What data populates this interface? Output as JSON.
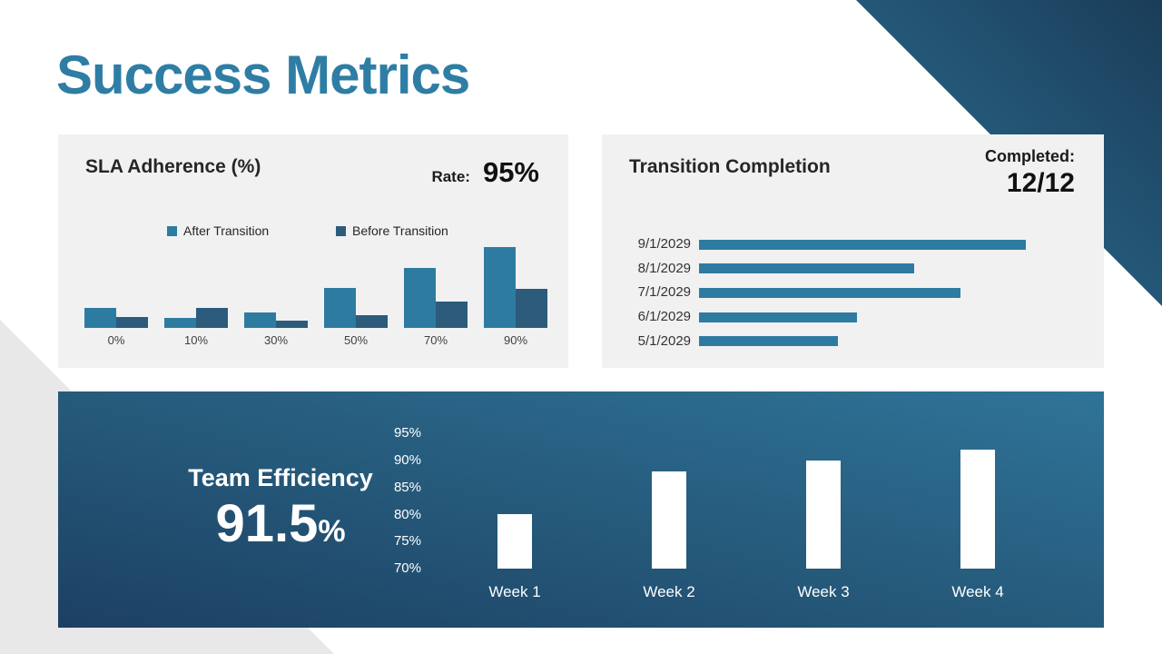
{
  "slide_title": "Success Metrics",
  "colors": {
    "accent": "#2E7DA4",
    "bar_light": "#2E7BA1",
    "bar_dark": "#2C5B7C",
    "bar_white": "#FFFFFF",
    "panel_bg": "#F1F1F2",
    "corner_triangle_light": "#2E7296",
    "corner_triangle_dark": "#1A3D59",
    "gray_triangle": "#E8E8E8"
  },
  "sla_panel": {
    "title": "SLA Adherence (%)",
    "rate_label": "Rate:",
    "rate_value": "95%"
  },
  "transition_panel": {
    "title": "Transition Completion",
    "completed_label": "Completed:",
    "completed_value": "12/12"
  },
  "efficiency_panel": {
    "title": "Team Efficiency",
    "value": "91.5",
    "unit": "%"
  },
  "chart_data": [
    {
      "name": "sla_adherence",
      "type": "bar",
      "categories": [
        "0%",
        "10%",
        "30%",
        "50%",
        "70%",
        "90%"
      ],
      "series": [
        {
          "name": "After Transition",
          "color": "#2E7BA1",
          "values": [
            23,
            12,
            18,
            47,
            70,
            95
          ]
        },
        {
          "name": "Before Transition",
          "color": "#2C5B7C",
          "values": [
            13,
            23,
            9,
            15,
            31,
            46
          ]
        }
      ],
      "ylim": [
        0,
        100
      ],
      "grid": false,
      "legend_position": "top"
    },
    {
      "name": "transition_completion",
      "type": "bar",
      "orientation": "horizontal",
      "categories": [
        "9/1/2029",
        "8/1/2029",
        "7/1/2029",
        "6/1/2029",
        "5/1/2029"
      ],
      "values": [
        12,
        7.9,
        9.6,
        5.8,
        5.1
      ],
      "xlim": [
        0,
        12
      ],
      "bar_color": "#2E7BA1",
      "grid": false
    },
    {
      "name": "team_efficiency",
      "type": "bar",
      "categories": [
        "Week 1",
        "Week 2",
        "Week 3",
        "Week 4"
      ],
      "values": [
        80,
        88,
        90,
        92
      ],
      "y_ticks": [
        "95%",
        "90%",
        "85%",
        "80%",
        "75%",
        "70%"
      ],
      "ylim": [
        70,
        95
      ],
      "bar_color": "#FFFFFF",
      "grid": false
    }
  ]
}
